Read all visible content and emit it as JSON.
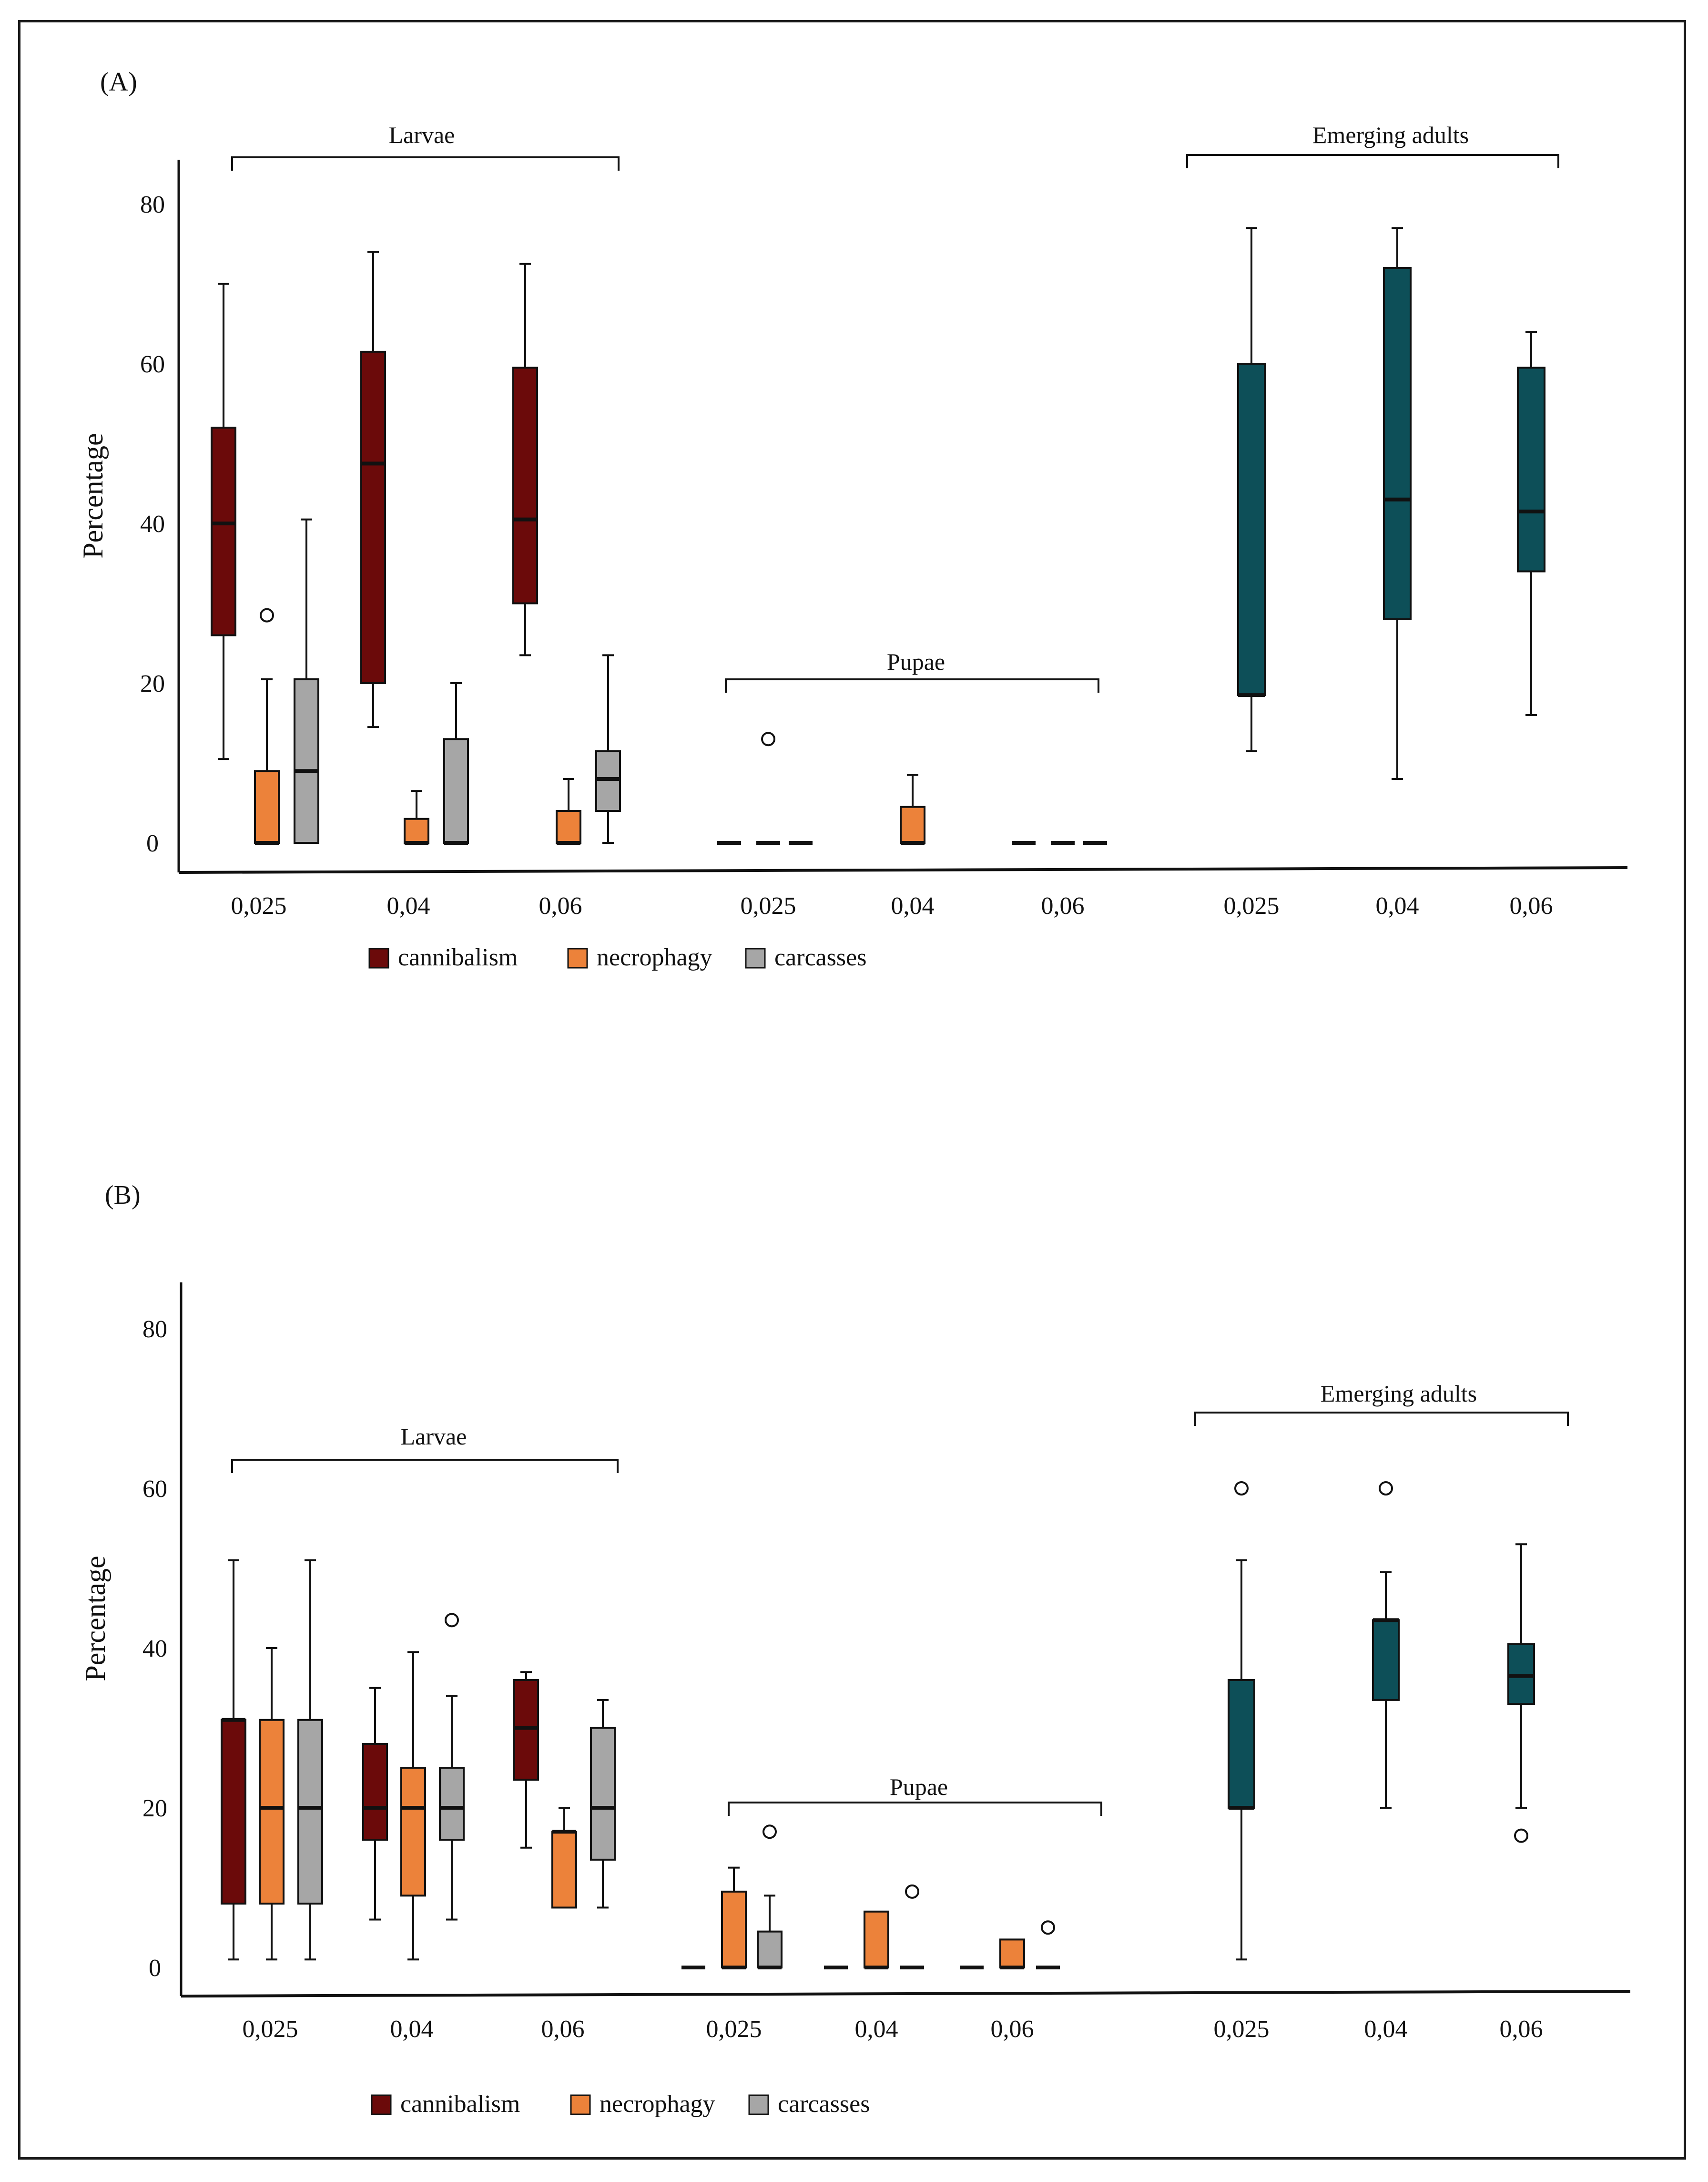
{
  "colors": {
    "cannibalism": "#6b0a0a",
    "necrophagy": "#ec823a",
    "carcasses": "#a6a6a6",
    "adults": "#0d4f58",
    "axis": "#111111"
  },
  "chart_data": [
    {
      "type": "box",
      "panel": "(A)",
      "ylabel": "Percentage",
      "yticks": [
        0,
        20,
        40,
        60,
        80
      ],
      "ylim": [
        0,
        85
      ],
      "group_labels": {
        "larvae": "Larvae",
        "pupae": "Pupae",
        "adults": "Emerging adults"
      },
      "legend": [
        "cannibalism",
        "necrophagy",
        "carcasses"
      ],
      "groups": [
        {
          "name": "Larvae",
          "ticks": [
            "0,025",
            "0,04",
            "0,06"
          ],
          "boxes": [
            {
              "tick": 0,
              "series": "cannibalism",
              "min": 10.5,
              "q1": 26,
              "median": 40,
              "q3": 52,
              "max": 70,
              "outliers": []
            },
            {
              "tick": 0,
              "series": "necrophagy",
              "min": 0,
              "q1": 0,
              "median": 0,
              "q3": 9,
              "max": 20.5,
              "outliers": [
                28.5
              ]
            },
            {
              "tick": 0,
              "series": "carcasses",
              "min": 0,
              "q1": 0,
              "median": 9,
              "q3": 20.5,
              "max": 40.5,
              "outliers": []
            },
            {
              "tick": 1,
              "series": "cannibalism",
              "min": 14.5,
              "q1": 20,
              "median": 47.5,
              "q3": 61.5,
              "max": 74,
              "outliers": []
            },
            {
              "tick": 1,
              "series": "necrophagy",
              "min": 0,
              "q1": 0,
              "median": 0,
              "q3": 3,
              "max": 6.5,
              "outliers": []
            },
            {
              "tick": 1,
              "series": "carcasses",
              "min": 0,
              "q1": 0,
              "median": 0,
              "q3": 13,
              "max": 20,
              "outliers": []
            },
            {
              "tick": 2,
              "series": "cannibalism",
              "min": 23.5,
              "q1": 30,
              "median": 40.5,
              "q3": 59.5,
              "max": 72.5,
              "outliers": []
            },
            {
              "tick": 2,
              "series": "necrophagy",
              "min": 0,
              "q1": 0,
              "median": 0,
              "q3": 4,
              "max": 8,
              "outliers": []
            },
            {
              "tick": 2,
              "series": "carcasses",
              "min": 0,
              "q1": 4,
              "median": 8,
              "q3": 11.5,
              "max": 23.5,
              "outliers": []
            }
          ]
        },
        {
          "name": "Pupae",
          "ticks": [
            "0,025",
            "0,04",
            "0,06"
          ],
          "boxes": [
            {
              "tick": 0,
              "series": "cannibalism",
              "min": 0,
              "q1": 0,
              "median": 0,
              "q3": 0,
              "max": 0,
              "outliers": []
            },
            {
              "tick": 0,
              "series": "necrophagy",
              "min": 0,
              "q1": 0,
              "median": 0,
              "q3": 0,
              "max": 0,
              "outliers": [
                13
              ]
            },
            {
              "tick": 0,
              "series": "carcasses",
              "min": 0,
              "q1": 0,
              "median": 0,
              "q3": 0,
              "max": 0,
              "outliers": []
            },
            {
              "tick": 1,
              "series": "necrophagy",
              "min": 0,
              "q1": 0,
              "median": 0,
              "q3": 4.5,
              "max": 8.5,
              "outliers": []
            },
            {
              "tick": 2,
              "series": "cannibalism",
              "min": 0,
              "q1": 0,
              "median": 0,
              "q3": 0,
              "max": 0,
              "outliers": []
            },
            {
              "tick": 2,
              "series": "necrophagy",
              "min": 0,
              "q1": 0,
              "median": 0,
              "q3": 0,
              "max": 0,
              "outliers": []
            },
            {
              "tick": 2,
              "series": "carcasses",
              "min": 0,
              "q1": 0,
              "median": 0,
              "q3": 0,
              "max": 0,
              "outliers": []
            }
          ]
        },
        {
          "name": "Emerging adults",
          "ticks": [
            "0,025",
            "0,04",
            "0,06"
          ],
          "boxes": [
            {
              "tick": 0,
              "series": "adults",
              "min": 11.5,
              "q1": 18.5,
              "median": 18.5,
              "q3": 60,
              "max": 77,
              "outliers": []
            },
            {
              "tick": 1,
              "series": "adults",
              "min": 8,
              "q1": 28,
              "median": 43,
              "q3": 72,
              "max": 77,
              "outliers": []
            },
            {
              "tick": 2,
              "series": "adults",
              "min": 16,
              "q1": 34,
              "median": 41.5,
              "q3": 59.5,
              "max": 64,
              "outliers": []
            }
          ]
        }
      ]
    },
    {
      "type": "box",
      "panel": "(B)",
      "ylabel": "Percentage",
      "yticks": [
        0,
        20,
        40,
        60,
        80
      ],
      "ylim": [
        0,
        85
      ],
      "group_labels": {
        "larvae": "Larvae",
        "pupae": "Pupae",
        "adults": "Emerging adults"
      },
      "legend": [
        "cannibalism",
        "necrophagy",
        "carcasses"
      ],
      "groups": [
        {
          "name": "Larvae",
          "ticks": [
            "0,025",
            "0,04",
            "0,06"
          ],
          "boxes": [
            {
              "tick": 0,
              "series": "cannibalism",
              "min": 1,
              "q1": 8,
              "median": 31,
              "q3": 31,
              "max": 51,
              "outliers": []
            },
            {
              "tick": 0,
              "series": "necrophagy",
              "min": 1,
              "q1": 8,
              "median": 20,
              "q3": 31,
              "max": 40,
              "outliers": []
            },
            {
              "tick": 0,
              "series": "carcasses",
              "min": 1,
              "q1": 8,
              "median": 20,
              "q3": 31,
              "max": 51,
              "outliers": []
            },
            {
              "tick": 1,
              "series": "cannibalism",
              "min": 6,
              "q1": 16,
              "median": 20,
              "q3": 28,
              "max": 35,
              "outliers": []
            },
            {
              "tick": 1,
              "series": "necrophagy",
              "min": 1,
              "q1": 9,
              "median": 20,
              "q3": 25,
              "max": 39.5,
              "outliers": []
            },
            {
              "tick": 1,
              "series": "carcasses",
              "min": 6,
              "q1": 16,
              "median": 20,
              "q3": 25,
              "max": 34,
              "outliers": [
                43.5
              ]
            },
            {
              "tick": 2,
              "series": "cannibalism",
              "min": 15,
              "q1": 23.5,
              "median": 30,
              "q3": 36,
              "max": 37,
              "outliers": []
            },
            {
              "tick": 2,
              "series": "necrophagy",
              "min": 7.5,
              "q1": 7.5,
              "median": 17,
              "q3": 17,
              "max": 20,
              "outliers": []
            },
            {
              "tick": 2,
              "series": "carcasses",
              "min": 7.5,
              "q1": 13.5,
              "median": 20,
              "q3": 30,
              "max": 33.5,
              "outliers": []
            }
          ]
        },
        {
          "name": "Pupae",
          "ticks": [
            "0,025",
            "0,04",
            "0,06"
          ],
          "boxes": [
            {
              "tick": 0,
              "series": "cannibalism",
              "min": 0,
              "q1": 0,
              "median": 0,
              "q3": 0,
              "max": 0,
              "outliers": []
            },
            {
              "tick": 0,
              "series": "necrophagy",
              "min": 0,
              "q1": 0,
              "median": 0,
              "q3": 9.5,
              "max": 12.5,
              "outliers": []
            },
            {
              "tick": 0,
              "series": "carcasses",
              "min": 0,
              "q1": 0,
              "median": 0,
              "q3": 4.5,
              "max": 9,
              "outliers": [
                17
              ]
            },
            {
              "tick": 1,
              "series": "cannibalism",
              "min": 0,
              "q1": 0,
              "median": 0,
              "q3": 0,
              "max": 0,
              "outliers": []
            },
            {
              "tick": 1,
              "series": "necrophagy",
              "min": 0,
              "q1": 0,
              "median": 0,
              "q3": 7,
              "max": 7,
              "outliers": []
            },
            {
              "tick": 1,
              "series": "carcasses",
              "min": 0,
              "q1": 0,
              "median": 0,
              "q3": 0,
              "max": 0,
              "outliers": [
                9.5
              ]
            },
            {
              "tick": 2,
              "series": "cannibalism",
              "min": 0,
              "q1": 0,
              "median": 0,
              "q3": 0,
              "max": 0,
              "outliers": []
            },
            {
              "tick": 2,
              "series": "necrophagy",
              "min": 0,
              "q1": 0,
              "median": 0,
              "q3": 3.5,
              "max": 3.5,
              "outliers": []
            },
            {
              "tick": 2,
              "series": "carcasses",
              "min": 0,
              "q1": 0,
              "median": 0,
              "q3": 0,
              "max": 0,
              "outliers": [
                5
              ]
            }
          ]
        },
        {
          "name": "Emerging adults",
          "ticks": [
            "0,025",
            "0,04",
            "0,06"
          ],
          "boxes": [
            {
              "tick": 0,
              "series": "adults",
              "min": 1,
              "q1": 20,
              "median": 20,
              "q3": 36,
              "max": 51,
              "outliers": [
                60
              ]
            },
            {
              "tick": 1,
              "series": "adults",
              "min": 20,
              "q1": 33.5,
              "median": 43.5,
              "q3": 43.5,
              "max": 49.5,
              "outliers": [
                60
              ]
            },
            {
              "tick": 2,
              "series": "adults",
              "min": 20,
              "q1": 33,
              "median": 36.5,
              "q3": 40.5,
              "max": 53,
              "outliers": [
                16.5
              ]
            }
          ]
        }
      ]
    }
  ]
}
